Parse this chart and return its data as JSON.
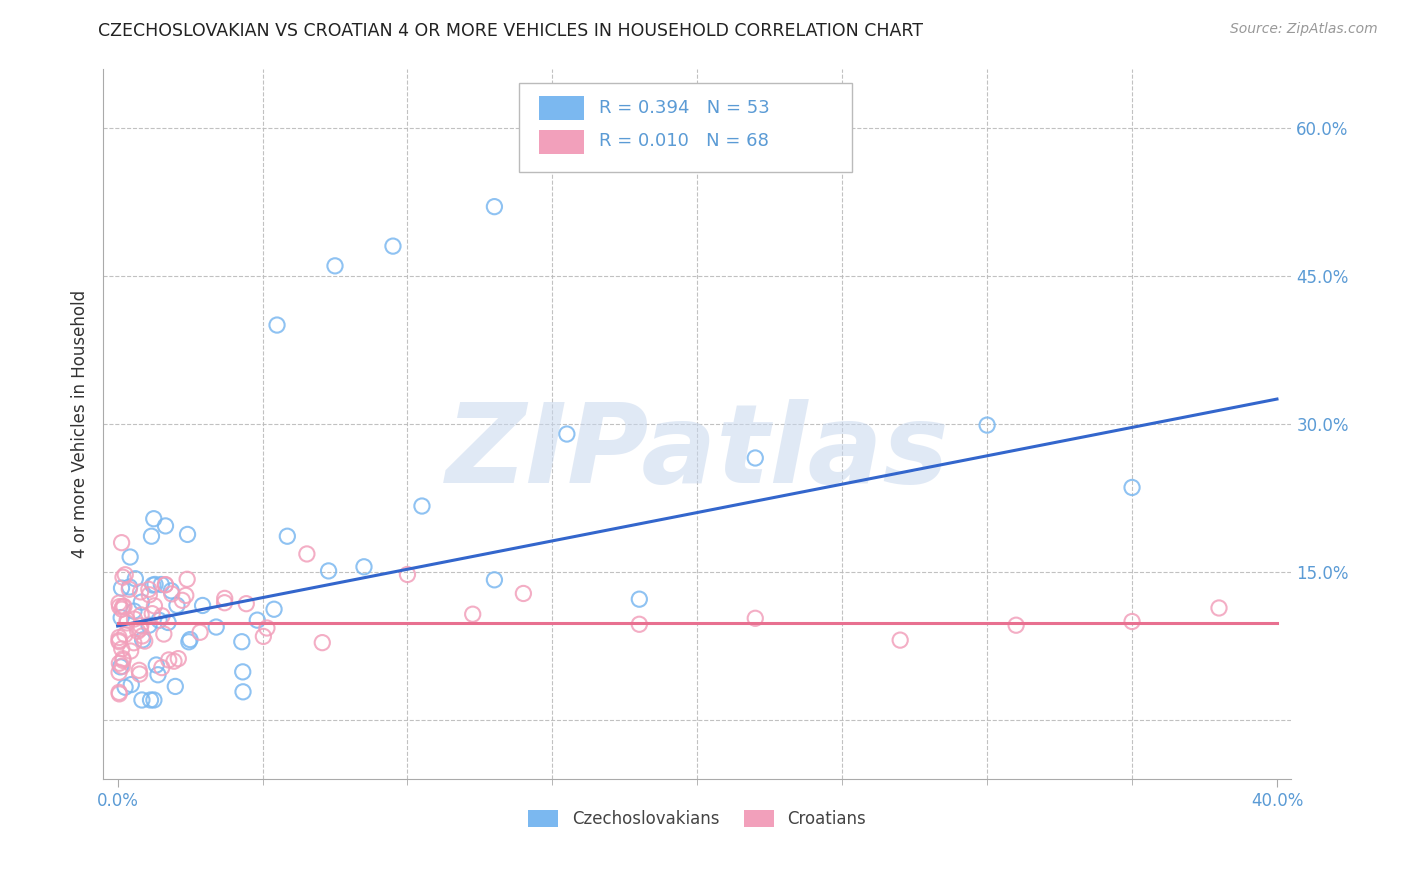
{
  "title": "CZECHOSLOVAKIAN VS CROATIAN 4 OR MORE VEHICLES IN HOUSEHOLD CORRELATION CHART",
  "source": "Source: ZipAtlas.com",
  "ylabel": "4 or more Vehicles in Household",
  "y_ticks": [
    0.0,
    0.15,
    0.3,
    0.45,
    0.6
  ],
  "y_tick_labels": [
    "",
    "15.0%",
    "30.0%",
    "45.0%",
    "60.0%"
  ],
  "x_range": [
    -0.005,
    0.405
  ],
  "y_range": [
    -0.06,
    0.66
  ],
  "watermark": "ZIPatlas",
  "legend_r1": "R = 0.394",
  "legend_n1": "N = 53",
  "legend_r2": "R = 0.010",
  "legend_n2": "N = 68",
  "color_czech": "#7BB8F0",
  "color_croatia": "#F2A0BB",
  "color_blue_line": "#3366CC",
  "color_pink_line": "#E87090",
  "color_title": "#222222",
  "color_source": "#999999",
  "color_axis_tick": "#5B9BD5",
  "background_color": "#FFFFFF",
  "grid_color": "#BBBBBB",
  "czech_trend_x": [
    0.0,
    0.4
  ],
  "czech_trend_y": [
    0.095,
    0.325
  ],
  "croatia_trend_x": [
    0.0,
    0.4
  ],
  "croatia_trend_y": [
    0.098,
    0.098
  ]
}
